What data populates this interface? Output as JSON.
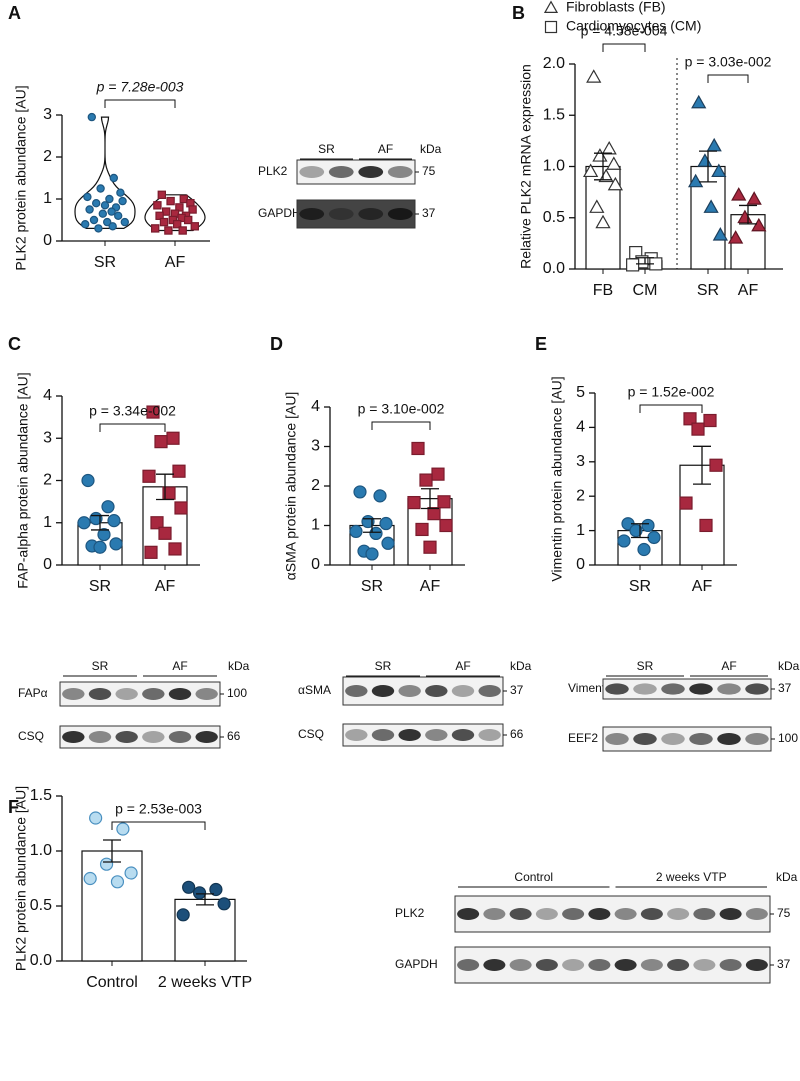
{
  "chart_data": [
    {
      "type": "violin",
      "panel": "A",
      "ylabel": "PLK2 protein abundance [AU]",
      "ylim": [
        0,
        3
      ],
      "yticks": [
        0,
        1,
        2,
        3
      ],
      "annotations": [
        "p = 7.28e-003"
      ],
      "groups": [
        {
          "name": "SR",
          "marker": "circle",
          "color": "#2a7ab0",
          "edgecolor": "#1d5680",
          "points": [
            2.95,
            1.5,
            1.25,
            1.15,
            1.05,
            1.0,
            0.95,
            0.9,
            0.85,
            0.8,
            0.75,
            0.7,
            0.65,
            0.6,
            0.5,
            0.45,
            0.45,
            0.4,
            0.35,
            0.3
          ]
        },
        {
          "name": "AF",
          "marker": "square",
          "color": "#a8283f",
          "edgecolor": "#7a1c2d",
          "points": [
            1.1,
            1.0,
            0.95,
            0.9,
            0.85,
            0.8,
            0.75,
            0.7,
            0.65,
            0.6,
            0.6,
            0.55,
            0.5,
            0.5,
            0.45,
            0.4,
            0.35,
            0.3,
            0.25,
            0.25
          ]
        }
      ]
    },
    {
      "type": "dotbar",
      "panel": "B",
      "ylabel": "Relative PLK2 mRNA expression",
      "ylim": [
        0,
        2
      ],
      "yticks": [
        {
          "value": 0,
          "label": "0.0"
        },
        {
          "value": 0.5,
          "label": "0.5"
        },
        {
          "value": 1,
          "label": "1.0"
        },
        {
          "value": 1.5,
          "label": "1.5"
        },
        {
          "value": 2,
          "label": "2.0"
        }
      ],
      "annotations": [
        "p = 4.58e-004",
        "p = 3.03e-002"
      ],
      "legend": [
        {
          "name": "Fibroblasts (FB)",
          "marker": "triangle"
        },
        {
          "name": "Cardiomyocytes (CM)",
          "marker": "square"
        }
      ],
      "groups": [
        {
          "name": "FB",
          "mean": 1.0,
          "error": 0.13,
          "marker": "triangle",
          "color": "#ffffff",
          "edgecolor": "#333333",
          "points": [
            1.87,
            1.17,
            1.1,
            1.02,
            0.95,
            0.9,
            0.82,
            0.6,
            0.45
          ]
        },
        {
          "name": "CM",
          "mean": 0.08,
          "error": 0.03,
          "marker": "square",
          "color": "#ffffff",
          "edgecolor": "#333333",
          "points": [
            0.16,
            0.1,
            0.07,
            0.05,
            0.04
          ]
        },
        {
          "name": "SR",
          "mean": 1.0,
          "error": 0.15,
          "marker": "triangle",
          "color": "#2a7ab0",
          "edgecolor": "#1d3f5c",
          "points": [
            1.62,
            1.2,
            1.05,
            0.95,
            0.85,
            0.6,
            0.33
          ]
        },
        {
          "name": "AF",
          "mean": 0.53,
          "error": 0.09,
          "marker": "triangle",
          "color": "#a8283f",
          "edgecolor": "#5e1522",
          "points": [
            0.72,
            0.68,
            0.5,
            0.42,
            0.3
          ]
        }
      ]
    },
    {
      "type": "dotbar",
      "panel": "C",
      "ylabel": "FAP-alpha protein abundance [AU]",
      "ylim": [
        0,
        4
      ],
      "yticks": [
        0,
        1,
        2,
        3,
        4
      ],
      "annotations": [
        "p = 3.34e-002"
      ],
      "groups": [
        {
          "name": "SR",
          "mean": 1.0,
          "error": 0.17,
          "marker": "circle",
          "color": "#2a7ab0",
          "edgecolor": "#1d5680",
          "points": [
            2.0,
            1.38,
            1.1,
            1.05,
            1.0,
            0.72,
            0.5,
            0.45,
            0.42
          ]
        },
        {
          "name": "AF",
          "mean": 1.85,
          "error": 0.3,
          "marker": "square",
          "color": "#a8283f",
          "edgecolor": "#7a1c2d",
          "points": [
            3.62,
            3.0,
            2.92,
            2.22,
            2.1,
            1.7,
            1.35,
            1.0,
            0.75,
            0.38,
            0.3
          ]
        }
      ]
    },
    {
      "type": "dotbar",
      "panel": "D",
      "ylabel": "αSMA protein abundance [AU]",
      "ylim": [
        0,
        4
      ],
      "yticks": [
        0,
        1,
        2,
        3,
        4
      ],
      "annotations": [
        "p = 3.10e-002"
      ],
      "groups": [
        {
          "name": "SR",
          "mean": 1.0,
          "error": 0.17,
          "marker": "circle",
          "color": "#2a7ab0",
          "edgecolor": "#1d5680",
          "points": [
            1.85,
            1.75,
            1.1,
            1.05,
            0.85,
            0.8,
            0.55,
            0.35,
            0.28
          ]
        },
        {
          "name": "AF",
          "mean": 1.68,
          "error": 0.25,
          "marker": "square",
          "color": "#a8283f",
          "edgecolor": "#7a1c2d",
          "points": [
            2.95,
            2.3,
            2.15,
            1.6,
            1.58,
            1.3,
            1.0,
            0.9,
            0.45
          ]
        }
      ]
    },
    {
      "type": "dotbar",
      "panel": "E",
      "ylabel": "Vimentin protein abundance  [AU]",
      "ylim": [
        0,
        5
      ],
      "yticks": [
        0,
        1,
        2,
        3,
        4,
        5
      ],
      "annotations": [
        "p = 1.52e-002"
      ],
      "groups": [
        {
          "name": "SR",
          "mean": 1.0,
          "error": 0.2,
          "marker": "circle",
          "color": "#2a7ab0",
          "edgecolor": "#1d5680",
          "points": [
            1.2,
            1.15,
            1.0,
            0.8,
            0.7,
            0.45
          ]
        },
        {
          "name": "AF",
          "mean": 2.9,
          "error": 0.55,
          "marker": "square",
          "color": "#a8283f",
          "edgecolor": "#7a1c2d",
          "points": [
            4.25,
            4.2,
            3.95,
            2.9,
            1.8,
            1.15
          ]
        }
      ]
    },
    {
      "type": "dotbar",
      "panel": "F",
      "ylabel": "PLK2 protein abundance [AU]",
      "ylim": [
        0,
        1.5
      ],
      "yticks": [
        {
          "value": 0,
          "label": "0.0"
        },
        {
          "value": 0.5,
          "label": "0.5"
        },
        {
          "value": 1,
          "label": "1.0"
        },
        {
          "value": 1.5,
          "label": "1.5"
        }
      ],
      "annotations": [
        "p = 2.53e-003"
      ],
      "groups": [
        {
          "name": "Control",
          "mean": 1.0,
          "error": 0.1,
          "marker": "circle",
          "color": "#b8dcf0",
          "edgecolor": "#4a90c0",
          "points": [
            1.3,
            1.2,
            0.88,
            0.8,
            0.75,
            0.72
          ]
        },
        {
          "name": "2 weeks VTP",
          "mean": 0.56,
          "error": 0.05,
          "marker": "circle",
          "color": "#1c4f7a",
          "edgecolor": "#123552",
          "points": [
            0.67,
            0.65,
            0.62,
            0.52,
            0.42
          ]
        }
      ]
    }
  ],
  "blots": [
    {
      "groups": [
        "SR",
        "AF"
      ],
      "unit": "kDa",
      "rows": [
        {
          "name": "PLK2",
          "marker": 75
        },
        {
          "name": "GAPDH",
          "marker": 37
        }
      ]
    },
    {
      "groups": [
        "SR",
        "AF"
      ],
      "unit": "kDa",
      "rows": [
        {
          "name": "FAPα",
          "marker": 100
        },
        {
          "name": "CSQ",
          "marker": 66
        }
      ]
    },
    {
      "groups": [
        "SR",
        "AF"
      ],
      "unit": "kDa",
      "rows": [
        {
          "name": "αSMA",
          "marker": 37
        },
        {
          "name": "CSQ",
          "marker": 66
        }
      ]
    },
    {
      "groups": [
        "SR",
        "AF"
      ],
      "unit": "kDa",
      "rows": [
        {
          "name": "Vimentin",
          "marker": 37
        },
        {
          "name": "EEF2",
          "marker": 100
        }
      ]
    },
    {
      "groups": [
        "Control",
        "2 weeks VTP"
      ],
      "unit": "kDa",
      "rows": [
        {
          "name": "PLK2",
          "marker": 75
        },
        {
          "name": "GAPDH",
          "marker": 37
        }
      ]
    }
  ]
}
